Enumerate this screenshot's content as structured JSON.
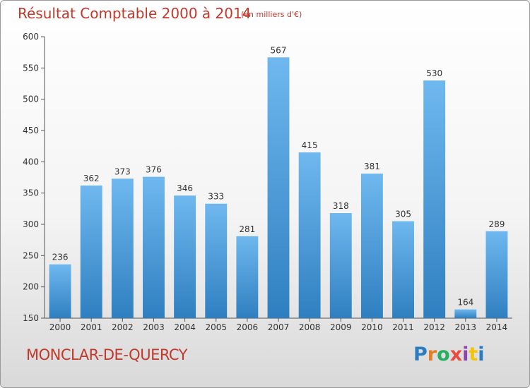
{
  "header": {
    "title": "Résultat Comptable 2000 à 2014",
    "subtitle": "(en milliers d'€)"
  },
  "commune": "MONCLAR-DE-QUERCY",
  "logo": {
    "letters": [
      "P",
      "r",
      "o",
      "x",
      "i",
      "t",
      "i"
    ],
    "colors": [
      "#2b7bc1",
      "#e67e22",
      "#27ae60",
      "#e74c3c",
      "#8e44ad",
      "#f1c40f",
      "#2b7bc1"
    ]
  },
  "colors": {
    "bar_top": "#6fb8ef",
    "bar_bottom": "#2f7fc0",
    "accent_text": "#c0392b"
  },
  "chart_data": {
    "type": "bar",
    "categories": [
      "2000",
      "2001",
      "2002",
      "2003",
      "2004",
      "2005",
      "2006",
      "2007",
      "2008",
      "2009",
      "2010",
      "2011",
      "2012",
      "2013",
      "2014"
    ],
    "values": [
      236,
      362,
      373,
      376,
      346,
      333,
      281,
      567,
      415,
      318,
      381,
      305,
      530,
      164,
      289
    ],
    "title": "Résultat Comptable 2000 à 2014",
    "xlabel": "",
    "ylabel": "",
    "ylim": [
      150,
      600
    ],
    "yticks": [
      150,
      200,
      250,
      300,
      350,
      400,
      450,
      500,
      550,
      600
    ],
    "grid": false,
    "data_labels": true
  }
}
